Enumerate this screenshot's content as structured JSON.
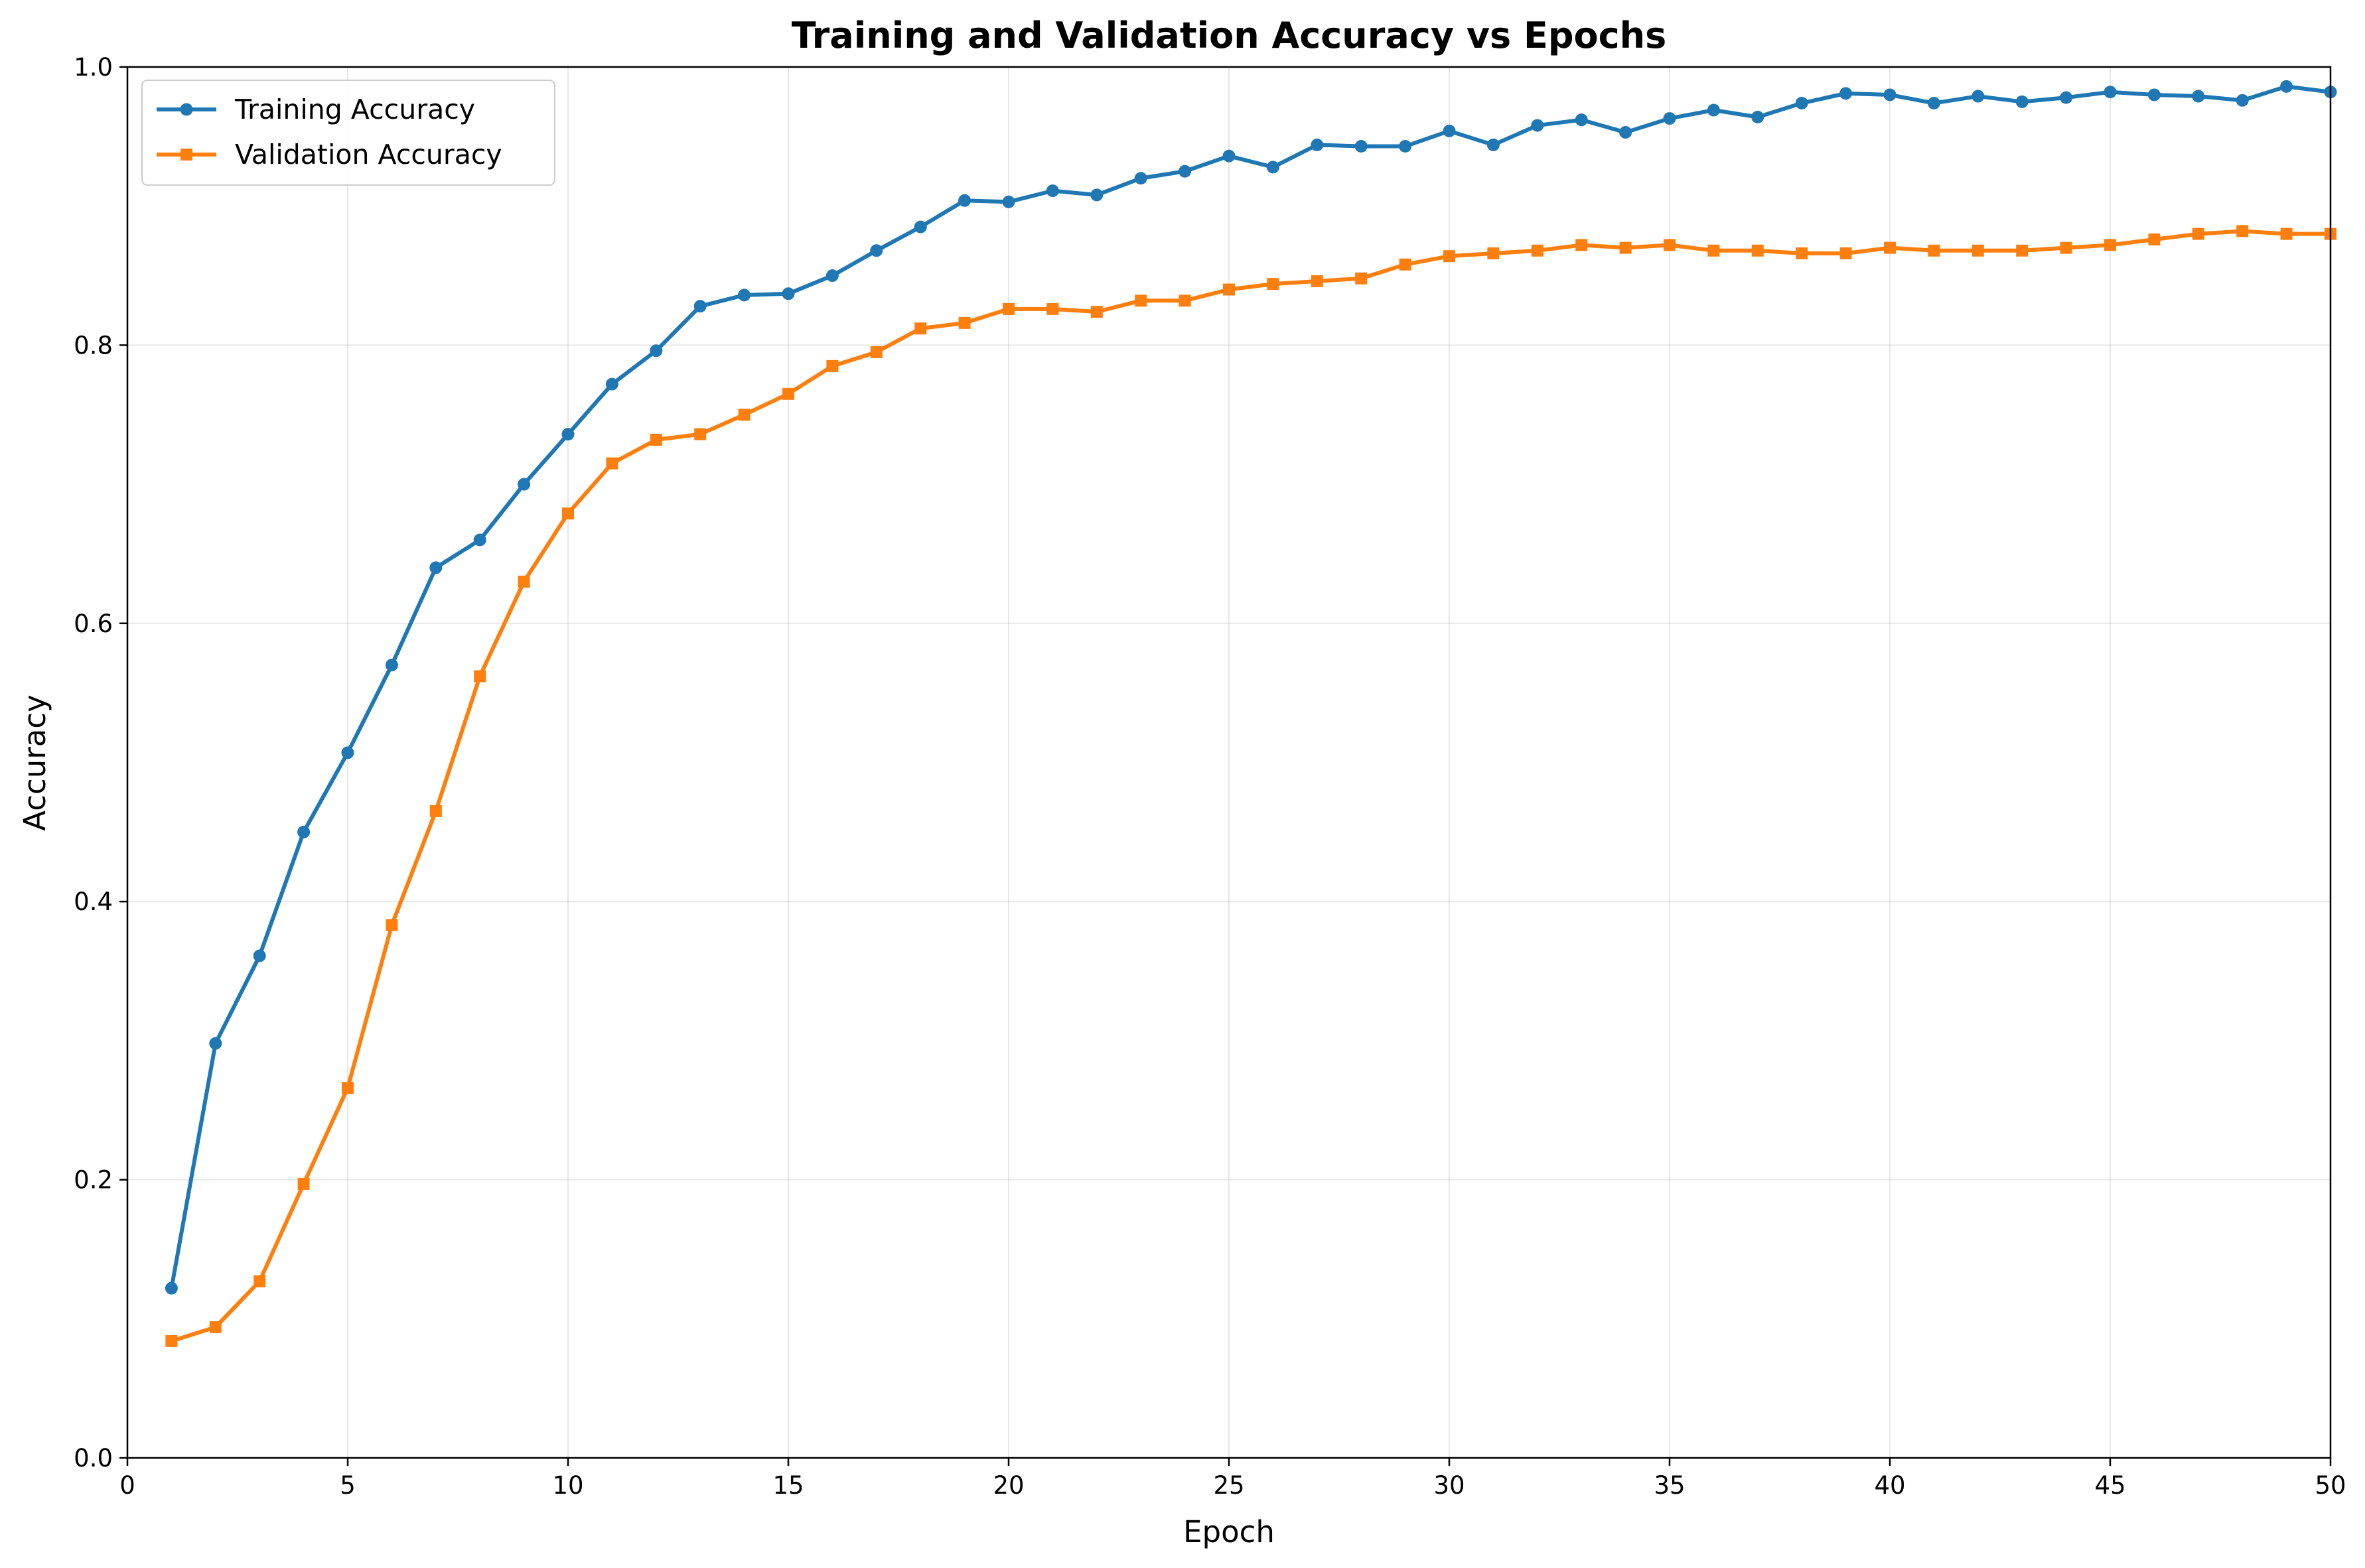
{
  "chart_data": {
    "type": "line",
    "title": "Training and Validation Accuracy vs Epochs",
    "xlabel": "Epoch",
    "ylabel": "Accuracy",
    "xlim": [
      0,
      50
    ],
    "ylim": [
      0,
      1.0
    ],
    "x_ticks": [
      "0",
      "5",
      "10",
      "15",
      "20",
      "25",
      "30",
      "35",
      "40",
      "45",
      "50"
    ],
    "y_ticks": [
      "0.0",
      "0.2",
      "0.4",
      "0.6",
      "0.8",
      "1.0"
    ],
    "grid": true,
    "legend_position": "top-left",
    "x": [
      1,
      2,
      3,
      4,
      5,
      6,
      7,
      8,
      9,
      10,
      11,
      12,
      13,
      14,
      15,
      16,
      17,
      18,
      19,
      20,
      21,
      22,
      23,
      24,
      25,
      26,
      27,
      28,
      29,
      30,
      31,
      32,
      33,
      34,
      35,
      36,
      37,
      38,
      39,
      40,
      41,
      42,
      43,
      44,
      45,
      46,
      47,
      48,
      49,
      50
    ],
    "series": [
      {
        "name": "Training Accuracy",
        "color": "#1f77b4",
        "marker": "circle",
        "values": [
          0.122,
          0.298,
          0.361,
          0.45,
          0.507,
          0.57,
          0.64,
          0.66,
          0.7,
          0.736,
          0.772,
          0.796,
          0.828,
          0.836,
          0.837,
          0.85,
          0.868,
          0.885,
          0.904,
          0.903,
          0.911,
          0.908,
          0.92,
          0.925,
          0.936,
          0.928,
          0.944,
          0.943,
          0.943,
          0.954,
          0.944,
          0.958,
          0.962,
          0.953,
          0.963,
          0.969,
          0.964,
          0.974,
          0.981,
          0.98,
          0.974,
          0.979,
          0.975,
          0.978,
          0.982,
          0.98,
          0.979,
          0.976,
          0.986,
          0.982
        ]
      },
      {
        "name": "Validation Accuracy",
        "color": "#ff7f0e",
        "marker": "square",
        "values": [
          0.084,
          0.094,
          0.127,
          0.197,
          0.266,
          0.383,
          0.465,
          0.562,
          0.63,
          0.679,
          0.715,
          0.732,
          0.736,
          0.75,
          0.765,
          0.785,
          0.795,
          0.812,
          0.816,
          0.826,
          0.826,
          0.824,
          0.832,
          0.832,
          0.84,
          0.844,
          0.846,
          0.848,
          0.858,
          0.864,
          0.866,
          0.868,
          0.872,
          0.87,
          0.872,
          0.868,
          0.868,
          0.866,
          0.866,
          0.87,
          0.868,
          0.868,
          0.868,
          0.87,
          0.872,
          0.876,
          0.88,
          0.882,
          0.88,
          0.88
        ]
      }
    ]
  }
}
